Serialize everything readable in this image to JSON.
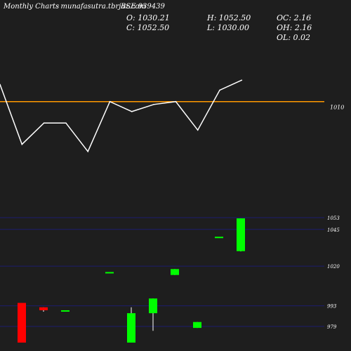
{
  "header": {
    "left_title": "Monthly Charts",
    "site": "- munafasutra.tbrjaz.com",
    "symbol": "BSE 939439",
    "o_label": "O: 1030.21",
    "h_label": "H: 1052.50",
    "oc_label": "OC: 2.16",
    "c_label": "C: 1052.50",
    "l_label": "L: 1030.00",
    "oh_label": "OH: 2.16",
    "ol_label": "OL: 0.02"
  },
  "colors": {
    "background": "#1e1e1e",
    "line": "#ffffff",
    "reference_line": "#ff9900",
    "bull": "#00ff00",
    "bear": "#ff0000",
    "gridline": "#1c1c6e"
  },
  "chart_data": [
    {
      "type": "line",
      "reference": {
        "value": 1010,
        "label": "1010"
      },
      "values": [
        1022,
        980,
        995,
        995,
        975,
        1010,
        1003,
        1008,
        1010,
        990,
        1018,
        1025
      ]
    },
    {
      "type": "candlestick",
      "yticks": [
        1053,
        1045,
        1020,
        993,
        979
      ],
      "candles": [
        {
          "open": 995,
          "high": 995,
          "low": 968,
          "close": 968
        },
        {
          "open": 992,
          "high": 992,
          "low": 989,
          "close": 990
        },
        {
          "open": 990,
          "high": 990,
          "low": 990,
          "close": 990
        },
        {
          "open": 1016,
          "high": 1016,
          "low": 1016,
          "close": 1016
        },
        {
          "open": 968,
          "high": 992,
          "low": 968,
          "close": 988
        },
        {
          "open": 988,
          "high": 998,
          "low": 976,
          "close": 998
        },
        {
          "open": 1014,
          "high": 1018,
          "low": 1014,
          "close": 1018
        },
        {
          "open": 978,
          "high": 982,
          "low": 978,
          "close": 982
        },
        {
          "open": 1040,
          "high": 1040,
          "low": 1040,
          "close": 1040
        },
        {
          "open": 1030.21,
          "high": 1052.5,
          "low": 1030,
          "close": 1052.5
        }
      ]
    }
  ]
}
